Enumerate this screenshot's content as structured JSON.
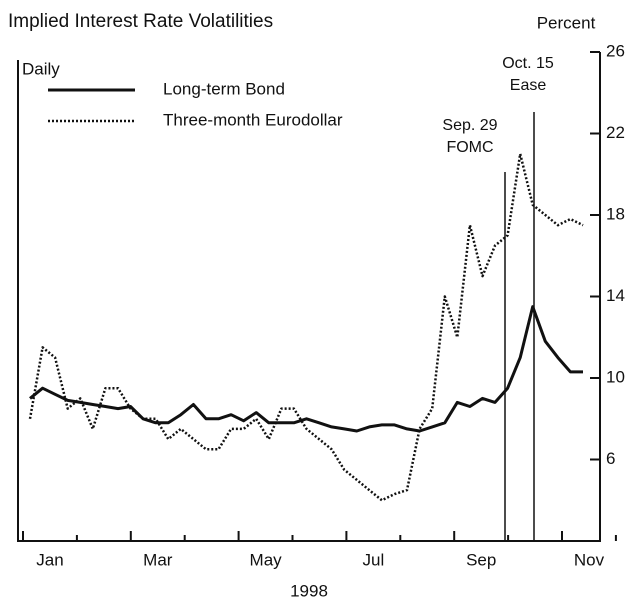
{
  "chart_data": {
    "type": "line",
    "title": "Implied Interest Rate Volatilities",
    "y_axis_label": "Percent",
    "x_axis_label": "1998",
    "frequency_label": "Daily",
    "month_labels": [
      "Jan",
      "Mar",
      "May",
      "Jul",
      "Sep",
      "Nov"
    ],
    "ylim": [
      2,
      26
    ],
    "yticks": [
      6,
      10,
      14,
      18,
      22,
      26
    ],
    "annotations": [
      [
        "Sep. 29",
        "FOMC"
      ],
      [
        "Oct. 15",
        "Ease"
      ]
    ],
    "series": [
      {
        "name": "Long-term Bond",
        "color": "#111111",
        "style": "solid",
        "values": [
          9.0,
          9.5,
          9.2,
          8.9,
          8.8,
          8.7,
          8.6,
          8.5,
          8.6,
          8.0,
          7.8,
          7.8,
          8.2,
          8.7,
          8.0,
          8.0,
          8.2,
          7.9,
          8.3,
          7.8,
          7.8,
          7.8,
          8.0,
          7.8,
          7.6,
          7.5,
          7.4,
          7.6,
          7.7,
          7.7,
          7.5,
          7.4,
          7.6,
          7.8,
          8.8,
          8.6,
          9.0,
          8.8,
          9.5,
          11.0,
          13.5,
          11.8,
          11.0,
          10.3,
          10.3
        ]
      },
      {
        "name": "Three-month Eurodollar",
        "color": "#111111",
        "style": "dotted",
        "values": [
          8.0,
          11.5,
          11.0,
          8.5,
          9.0,
          7.5,
          9.5,
          9.5,
          8.5,
          8.0,
          8.0,
          7.0,
          7.5,
          7.0,
          6.5,
          6.5,
          7.5,
          7.5,
          8.0,
          7.0,
          8.5,
          8.5,
          7.5,
          7.0,
          6.5,
          5.5,
          5.0,
          4.5,
          4.0,
          4.3,
          4.5,
          7.5,
          8.5,
          14.0,
          12.0,
          17.5,
          15.0,
          16.5,
          17.0,
          21.0,
          18.5,
          18.0,
          17.5,
          17.8,
          17.5
        ]
      }
    ]
  }
}
